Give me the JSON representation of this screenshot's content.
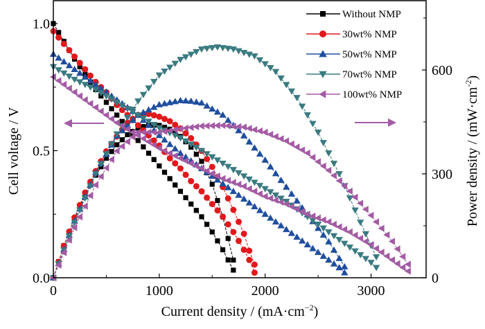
{
  "chart_data": {
    "type": "line",
    "title": "",
    "xlabel": "Current density / (mA·cm",
    "xlabel_sup": "−2",
    "xlabel_end": ")",
    "ylabel": "Cell voltage / V",
    "y2label": "Power density / (mW·cm",
    "y2label_sup": "-2",
    "y2label_end": ")",
    "xlim": [
      0,
      3520
    ],
    "ylim": [
      0,
      1.09
    ],
    "y2lim": [
      0,
      800
    ],
    "xticks": [
      0,
      1000,
      2000,
      3000
    ],
    "xtick_labels": [
      "0",
      "1000",
      "2000",
      "3000"
    ],
    "yticks": [
      0.0,
      0.5,
      1.0
    ],
    "ytick_labels": [
      "0.0",
      "0.5",
      "1.0"
    ],
    "y2ticks": [
      0,
      300,
      600
    ],
    "y2tick_labels": [
      "0",
      "300",
      "600"
    ],
    "legend_position": "top-right",
    "arrows": [
      {
        "direction": "left",
        "meaning": "voltage axis",
        "color": "#a35ba3"
      },
      {
        "direction": "right",
        "meaning": "power axis",
        "color": "#a35ba3"
      }
    ],
    "series": [
      {
        "name": "Without NMP",
        "color": "#000000",
        "marker": "square",
        "polarization": {
          "x": [
            0,
            100,
            200,
            300,
            400,
            500,
            600,
            700,
            800,
            900,
            1000,
            1100,
            1200,
            1300,
            1400,
            1500,
            1600,
            1650,
            1700,
            1720
          ],
          "v": [
            1.0,
            0.93,
            0.86,
            0.8,
            0.74,
            0.69,
            0.64,
            0.59,
            0.54,
            0.49,
            0.44,
            0.39,
            0.34,
            0.29,
            0.24,
            0.18,
            0.11,
            0.07,
            0.03,
            0.01
          ]
        },
        "power": {
          "x": [
            0,
            100,
            200,
            300,
            400,
            500,
            600,
            700,
            800,
            900,
            1000,
            1100,
            1200,
            1300,
            1400,
            1500,
            1600,
            1700,
            1720
          ],
          "p": [
            0,
            93,
            172,
            240,
            296,
            345,
            384,
            413,
            432,
            441,
            440,
            429,
            408,
            377,
            336,
            270,
            176,
            51,
            17
          ]
        }
      },
      {
        "name": "30wt% NMP",
        "color": "#e0191c",
        "marker": "circle",
        "polarization": {
          "x": [
            0,
            100,
            200,
            300,
            400,
            500,
            600,
            700,
            800,
            900,
            1000,
            1100,
            1200,
            1300,
            1400,
            1500,
            1600,
            1700,
            1800,
            1850,
            1900
          ],
          "v": [
            0.97,
            0.92,
            0.87,
            0.82,
            0.77,
            0.73,
            0.68,
            0.64,
            0.6,
            0.56,
            0.52,
            0.47,
            0.43,
            0.38,
            0.34,
            0.29,
            0.24,
            0.18,
            0.11,
            0.07,
            0.02
          ]
        },
        "power": {
          "x": [
            0,
            100,
            200,
            300,
            400,
            500,
            600,
            700,
            800,
            900,
            1000,
            1100,
            1200,
            1300,
            1400,
            1500,
            1600,
            1700,
            1800,
            1850,
            1900
          ],
          "p": [
            0,
            92,
            174,
            246,
            308,
            365,
            408,
            448,
            470,
            473,
            465,
            452,
            431,
            403,
            366,
            320,
            262,
            196,
            127,
            78,
            38
          ]
        }
      },
      {
        "name": "50wt% NMP",
        "color": "#1f4e9e",
        "marker": "triangle-up",
        "polarization": {
          "x": [
            0,
            200,
            400,
            600,
            800,
            1000,
            1200,
            1400,
            1600,
            1800,
            2000,
            2200,
            2400,
            2600,
            2700,
            2750
          ],
          "v": [
            0.88,
            0.82,
            0.76,
            0.7,
            0.64,
            0.56,
            0.49,
            0.43,
            0.37,
            0.31,
            0.25,
            0.19,
            0.13,
            0.07,
            0.04,
            0.02
          ]
        },
        "power": {
          "x": [
            0,
            200,
            400,
            600,
            800,
            1000,
            1200,
            1300,
            1400,
            1600,
            1800,
            2000,
            2200,
            2400,
            2600,
            2750
          ],
          "p": [
            0,
            164,
            304,
            410,
            470,
            500,
            512,
            510,
            505,
            470,
            410,
            340,
            262,
            182,
            104,
            32
          ]
        }
      },
      {
        "name": "70wt% NMP",
        "color": "#3a7a80",
        "marker": "triangle-down",
        "polarization": {
          "x": [
            0,
            200,
            400,
            600,
            800,
            1000,
            1200,
            1400,
            1600,
            1800,
            2000,
            2200,
            2400,
            2600,
            2800,
            3000,
            3050
          ],
          "v": [
            0.83,
            0.78,
            0.74,
            0.69,
            0.64,
            0.59,
            0.55,
            0.5,
            0.45,
            0.4,
            0.35,
            0.3,
            0.24,
            0.18,
            0.12,
            0.06,
            0.04
          ]
        },
        "power": {
          "x": [
            0,
            200,
            400,
            600,
            800,
            1000,
            1200,
            1400,
            1550,
            1700,
            1900,
            2100,
            2300,
            2500,
            2700,
            2900,
            3050
          ],
          "p": [
            0,
            160,
            300,
            415,
            510,
            585,
            630,
            660,
            666,
            660,
            640,
            595,
            520,
            420,
            300,
            160,
            60
          ]
        }
      },
      {
        "name": "100wt% NMP",
        "color": "#a35ba3",
        "marker": "triangle-left",
        "polarization": {
          "x": [
            0,
            200,
            400,
            600,
            800,
            1000,
            1200,
            1400,
            1600,
            1800,
            2000,
            2200,
            2400,
            2600,
            2800,
            3000,
            3200,
            3370
          ],
          "v": [
            0.79,
            0.73,
            0.67,
            0.61,
            0.56,
            0.51,
            0.47,
            0.43,
            0.39,
            0.36,
            0.32,
            0.29,
            0.25,
            0.22,
            0.18,
            0.13,
            0.07,
            0.02
          ]
        },
        "power": {
          "x": [
            0,
            200,
            400,
            600,
            800,
            1000,
            1200,
            1400,
            1600,
            1800,
            2000,
            2200,
            2400,
            2600,
            2800,
            3000,
            3200,
            3370
          ],
          "p": [
            0,
            145,
            268,
            366,
            420,
            420,
            430,
            438,
            440,
            435,
            420,
            395,
            360,
            310,
            250,
            180,
            105,
            30
          ]
        }
      }
    ]
  }
}
